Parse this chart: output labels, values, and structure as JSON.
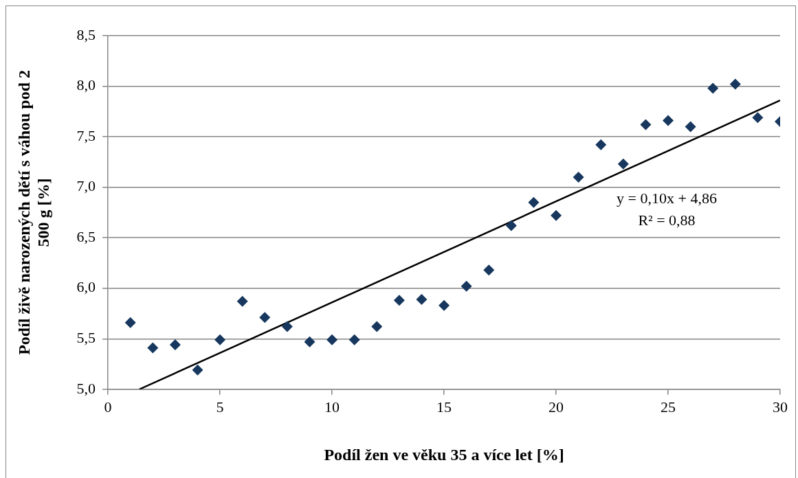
{
  "chart_data": {
    "type": "scatter",
    "xlabel": "Podíl žen ve věku 35 a více let [%]",
    "ylabel": "Podíl živě narozených dětí s váhou pod 2 500 g [%]",
    "x": [
      1,
      2,
      3,
      4,
      5,
      6,
      7,
      8,
      9,
      10,
      11,
      12,
      13,
      14,
      15,
      16,
      17,
      18,
      19,
      20,
      21,
      22,
      23,
      24,
      25,
      26,
      27,
      28,
      29,
      30
    ],
    "series": [
      {
        "type": "scatter",
        "color": "#17375e",
        "marker": "diamond",
        "values": [
          5.66,
          5.41,
          5.44,
          5.19,
          5.49,
          5.87,
          5.71,
          5.62,
          5.47,
          5.49,
          5.49,
          5.62,
          5.88,
          5.89,
          5.83,
          6.02,
          6.18,
          6.62,
          6.85,
          6.72,
          7.1,
          7.42,
          7.23,
          7.62,
          7.66,
          7.6,
          7.98,
          8.02,
          7.69,
          7.65
        ]
      },
      {
        "type": "line",
        "color": "#000000",
        "marker": "none",
        "line_style": "solid",
        "x": [
          1.4,
          30
        ],
        "values": [
          5.0,
          7.86
        ]
      }
    ],
    "xlim": [
      0,
      30
    ],
    "xticks": [
      0,
      5,
      10,
      15,
      20,
      25,
      30
    ],
    "ylim": [
      5,
      8.5
    ],
    "yticks": [
      {
        "value": 5,
        "label": "5,0"
      },
      {
        "value": 5.5,
        "label": "5,5"
      },
      {
        "value": 6,
        "label": "6,0"
      },
      {
        "value": 6.5,
        "label": "6,5"
      },
      {
        "value": 7,
        "label": "7,0"
      },
      {
        "value": 7.5,
        "label": "7,5"
      },
      {
        "value": 8,
        "label": "8,0"
      },
      {
        "value": 8.5,
        "label": "8,5"
      }
    ],
    "grid": "y",
    "annotations": [
      "y = 0,10x + 4,86",
      "R² = 0,88"
    ]
  }
}
